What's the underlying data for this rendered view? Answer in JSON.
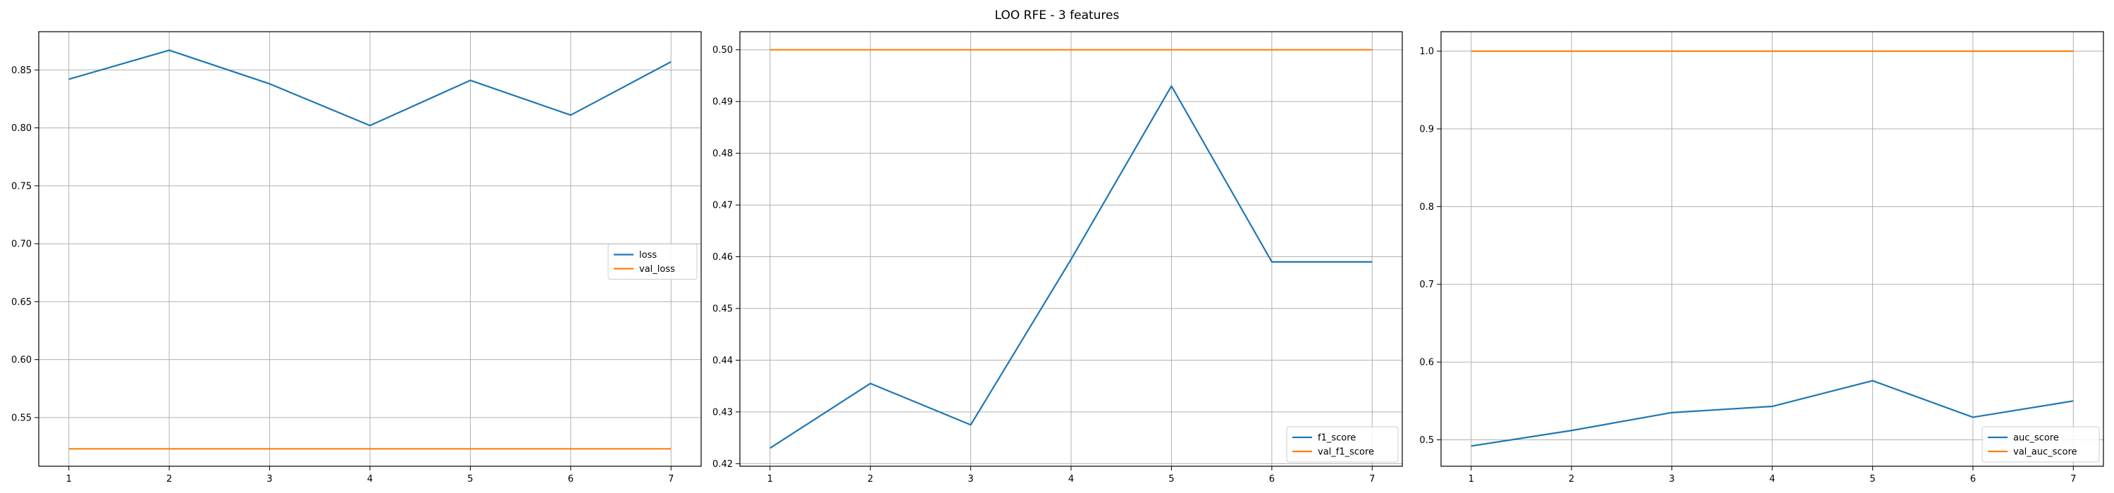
{
  "figure": {
    "suptitle": "LOO RFE - 3 features"
  },
  "colors": {
    "series1": "#1f77b4",
    "series2": "#ff7f0e"
  },
  "chart_data": [
    {
      "type": "line",
      "title": "",
      "xlabel": "",
      "ylabel": "",
      "x": [
        1,
        2,
        3,
        4,
        5,
        6,
        7
      ],
      "xlim": [
        0.7,
        7.3
      ],
      "ylim": [
        0.508,
        0.883
      ],
      "xticks": [
        "1",
        "2",
        "3",
        "4",
        "5",
        "6",
        "7"
      ],
      "yticks": [
        0.55,
        0.6,
        0.65,
        0.7,
        0.75,
        0.8,
        0.85
      ],
      "ytick_labels": [
        "0.55",
        "0.60",
        "0.65",
        "0.70",
        "0.75",
        "0.80",
        "0.85"
      ],
      "grid": true,
      "legend_position": "center-right",
      "series": [
        {
          "name": "loss",
          "color": "#1f77b4",
          "values": [
            0.842,
            0.867,
            0.838,
            0.802,
            0.841,
            0.811,
            0.857
          ]
        },
        {
          "name": "val_loss",
          "color": "#ff7f0e",
          "values": [
            0.523,
            0.523,
            0.523,
            0.523,
            0.523,
            0.523,
            0.523
          ]
        }
      ]
    },
    {
      "type": "line",
      "title": "",
      "xlabel": "",
      "ylabel": "",
      "x": [
        1,
        2,
        3,
        4,
        5,
        6,
        7
      ],
      "xlim": [
        0.7,
        7.3
      ],
      "ylim": [
        0.4195,
        0.5035
      ],
      "xticks": [
        "1",
        "2",
        "3",
        "4",
        "5",
        "6",
        "7"
      ],
      "yticks": [
        0.42,
        0.43,
        0.44,
        0.45,
        0.46,
        0.47,
        0.48,
        0.49,
        0.5
      ],
      "ytick_labels": [
        "0.42",
        "0.43",
        "0.44",
        "0.45",
        "0.46",
        "0.47",
        "0.48",
        "0.49",
        "0.50"
      ],
      "grid": true,
      "legend_position": "lower-right",
      "series": [
        {
          "name": "f1_score",
          "color": "#1f77b4",
          "values": [
            0.423,
            0.4355,
            0.4275,
            0.4595,
            0.493,
            0.459,
            0.459
          ]
        },
        {
          "name": "val_f1_score",
          "color": "#ff7f0e",
          "values": [
            0.5,
            0.5,
            0.5,
            0.5,
            0.5,
            0.5,
            0.5
          ]
        }
      ]
    },
    {
      "type": "line",
      "title": "",
      "xlabel": "",
      "ylabel": "",
      "x": [
        1,
        2,
        3,
        4,
        5,
        6,
        7
      ],
      "xlim": [
        0.7,
        7.3
      ],
      "ylim": [
        0.466,
        1.025
      ],
      "xticks": [
        "1",
        "2",
        "3",
        "4",
        "5",
        "6",
        "7"
      ],
      "yticks": [
        0.5,
        0.6,
        0.7,
        0.8,
        0.9,
        1.0
      ],
      "ytick_labels": [
        "0.5",
        "0.6",
        "0.7",
        "0.8",
        "0.9",
        "1.0"
      ],
      "grid": true,
      "legend_position": "lower-right",
      "series": [
        {
          "name": "auc_score",
          "color": "#1f77b4",
          "values": [
            0.492,
            0.512,
            0.535,
            0.543,
            0.576,
            0.529,
            0.55
          ]
        },
        {
          "name": "val_auc_score",
          "color": "#ff7f0e",
          "values": [
            1.0,
            1.0,
            1.0,
            1.0,
            1.0,
            1.0,
            1.0
          ]
        }
      ]
    }
  ]
}
